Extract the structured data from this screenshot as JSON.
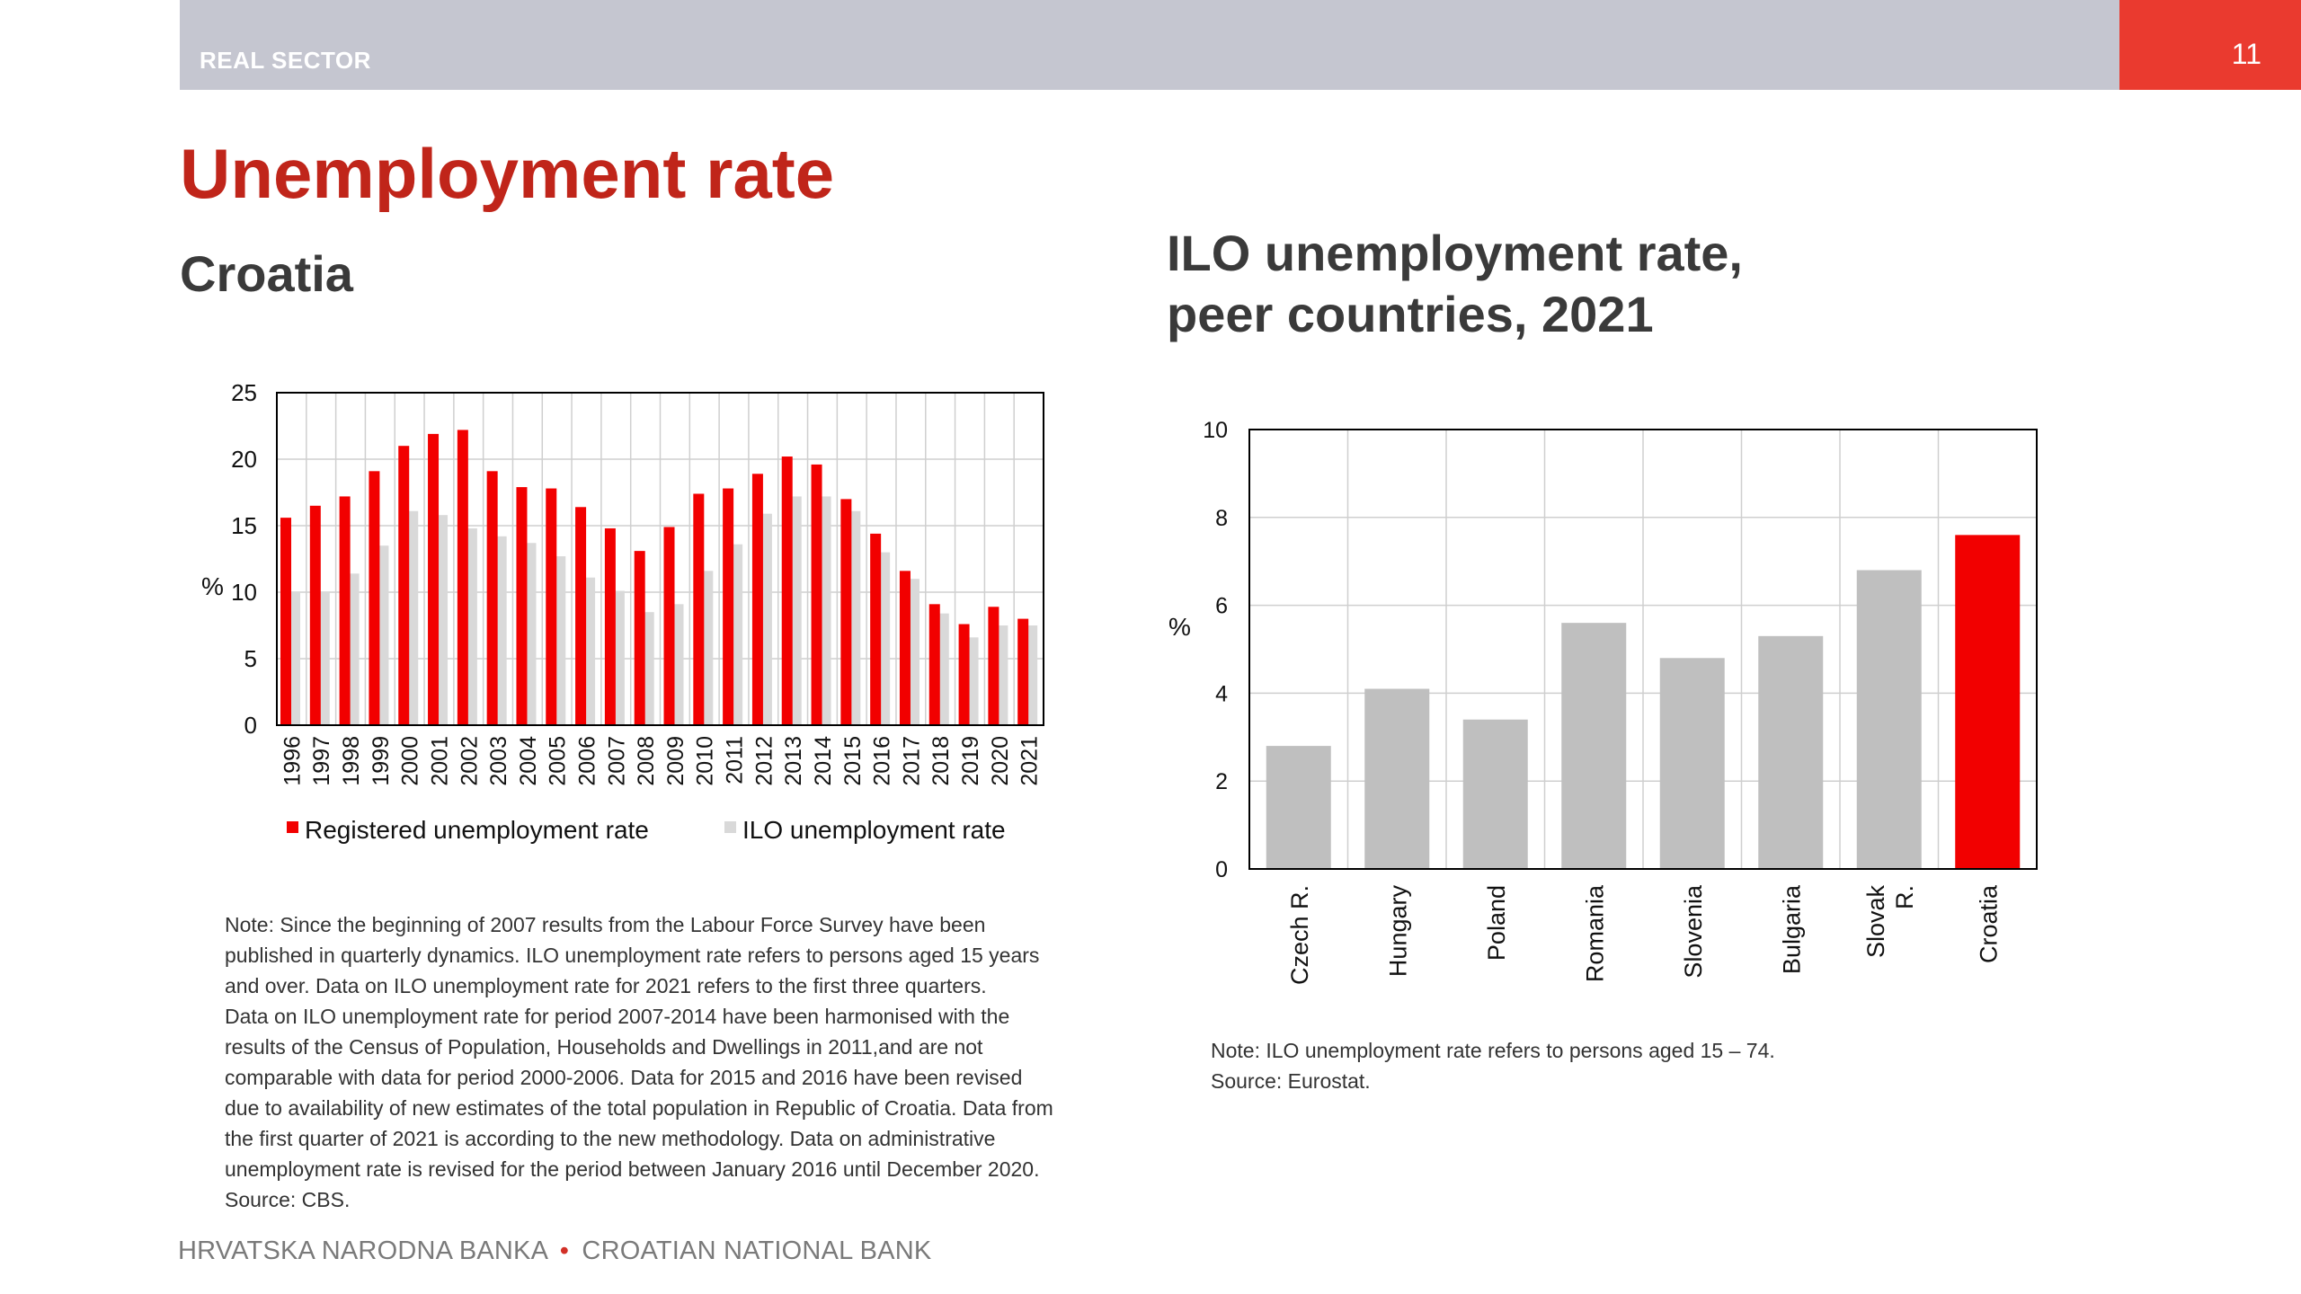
{
  "header": {
    "section": "REAL SECTOR",
    "page_number": "11"
  },
  "title": "Unemployment rate",
  "left_chart": {
    "subtitle": "Croatia",
    "note_lines": [
      "Note: Since the beginning of 2007 results from the Labour Force Survey have been",
      "published in quarterly dynamics. ILO unemployment rate refers to persons aged 15 years",
      "and over. Data on ILO unemployment rate for 2021 refers to the first three quarters.",
      "Data on ILO unemployment rate for period 2007-2014 have been  harmonised with the",
      "results of the Census of Population, Households and Dwellings in 2011,and are not",
      "comparable with data for period 2000-2006. Data for 2015 and 2016 have been revised",
      "due to availability of new estimates of the total population in Republic of Croatia. Data from",
      "the first quarter of 2021 is according to the new methodology. Data on administrative",
      "unemployment rate is revised for the period between January 2016 until December 2020.",
      "Source: CBS."
    ]
  },
  "right_chart": {
    "subtitle_lines": [
      "ILO unemployment rate,",
      "peer countries, 2021"
    ],
    "note_lines": [
      "Note: ILO unemployment rate refers to persons aged 15 – 74.",
      "Source: Eurostat."
    ]
  },
  "footer": {
    "left": "HRVATSKA NARODNA BANKA",
    "separator": "•",
    "right": "CROATIAN NATIONAL BANK"
  },
  "colors": {
    "red": "#f20000",
    "grey": "#d9d9d9",
    "grey_bar": "#bfbfbf"
  },
  "chart_data": [
    {
      "type": "bar",
      "title": "Croatia",
      "categories": [
        "1996",
        "1997",
        "1998",
        "1999",
        "2000",
        "2001",
        "2002",
        "2003",
        "2004",
        "2005",
        "2006",
        "2007",
        "2008",
        "2009",
        "2010",
        "2011",
        "2012",
        "2013",
        "2014",
        "2015",
        "2016",
        "2017",
        "2018",
        "2019",
        "2020",
        "2021"
      ],
      "series": [
        {
          "name": "Registered unemployment rate",
          "color": "#f20000",
          "values": [
            15.6,
            16.5,
            17.2,
            19.1,
            21.0,
            21.9,
            22.2,
            19.1,
            17.9,
            17.8,
            16.4,
            14.8,
            13.1,
            14.9,
            17.4,
            17.8,
            18.9,
            20.2,
            19.6,
            17.0,
            14.4,
            11.6,
            9.1,
            7.6,
            8.9,
            8.0
          ]
        },
        {
          "name": "ILO unemployment rate",
          "color": "#d9d9d9",
          "values": [
            10.0,
            10.0,
            11.4,
            13.5,
            16.1,
            15.8,
            14.8,
            14.2,
            13.7,
            12.7,
            11.1,
            10.1,
            8.5,
            9.1,
            11.6,
            13.6,
            15.9,
            17.2,
            17.2,
            16.1,
            13.0,
            11.0,
            8.4,
            6.6,
            7.5,
            7.5
          ]
        }
      ],
      "ylabel": "%",
      "ylim": [
        0,
        25
      ],
      "yticks": [
        "0",
        "5",
        "10",
        "15",
        "20",
        "25"
      ]
    },
    {
      "type": "bar",
      "title": "ILO unemployment rate, peer countries, 2021",
      "categories": [
        [
          "Czech R."
        ],
        [
          "Hungary"
        ],
        [
          "Poland"
        ],
        [
          "Romania"
        ],
        [
          "Slovenia"
        ],
        [
          "Bulgaria"
        ],
        [
          "Slovak",
          "R."
        ],
        [
          "Croatia"
        ]
      ],
      "values": [
        2.8,
        4.1,
        3.4,
        5.6,
        4.8,
        5.3,
        6.8,
        7.6
      ],
      "highlight": "Croatia",
      "ylabel": "%",
      "ylim": [
        0,
        10
      ],
      "yticks": [
        "0",
        "2",
        "4",
        "6",
        "8",
        "10"
      ]
    }
  ]
}
